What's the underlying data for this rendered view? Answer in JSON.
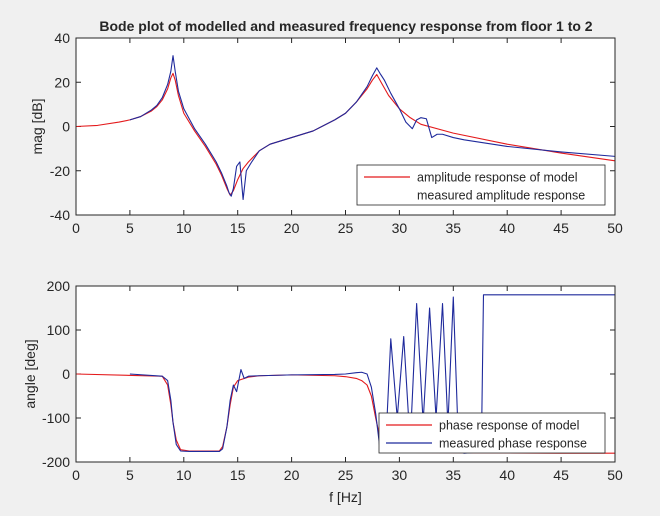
{
  "chart_data": [
    {
      "type": "line",
      "title": "Bode plot of modelled and measured frequency response from floor 1 to 2",
      "xlabel": "",
      "ylabel": "mag [dB]",
      "xlim": [
        0,
        50
      ],
      "ylim": [
        -40,
        40
      ],
      "xticks": [
        0,
        5,
        10,
        15,
        20,
        25,
        30,
        35,
        40,
        45,
        50
      ],
      "yticks": [
        -40,
        -20,
        0,
        20,
        40
      ],
      "grid": false,
      "legend_position": "bottom-right",
      "series": [
        {
          "name": "amplitude response of model",
          "color": "#e41a1c",
          "x": [
            0,
            2,
            4,
            5,
            6,
            7,
            7.5,
            8,
            8.5,
            8.8,
            9,
            9.2,
            9.5,
            10,
            11,
            12,
            13,
            13.5,
            14,
            14.3,
            14.6,
            15,
            15.5,
            16,
            17,
            18,
            20,
            22,
            24,
            25,
            26,
            27,
            27.5,
            27.9,
            28.3,
            29,
            30,
            31,
            32,
            35,
            40,
            45,
            50
          ],
          "y": [
            0,
            0.5,
            2,
            3,
            4.5,
            7,
            9,
            12,
            17,
            22,
            24,
            21,
            14,
            6,
            -2,
            -9,
            -17,
            -22,
            -28,
            -31,
            -29,
            -24,
            -19,
            -16,
            -11,
            -8,
            -5,
            -2,
            3,
            6,
            11,
            17,
            21,
            23.5,
            20,
            14,
            8,
            4,
            1,
            -3,
            -8,
            -12,
            -15.5
          ]
        },
        {
          "name": "measured amplitude response",
          "color": "#1f2a9c",
          "x": [
            5,
            6,
            7,
            7.5,
            8,
            8.5,
            8.8,
            9,
            9.2,
            9.5,
            10,
            11,
            12,
            13,
            13.5,
            14,
            14.2,
            14.4,
            14.6,
            14.9,
            15.2,
            15.5,
            15.8,
            16.3,
            17,
            18,
            20,
            22,
            24,
            25,
            26,
            27,
            27.5,
            27.9,
            28.2,
            28.6,
            29.2,
            30,
            30.6,
            31.2,
            31.6,
            32,
            32.5,
            33,
            33.5,
            34,
            35,
            36,
            40,
            45,
            50
          ],
          "y": [
            3,
            4.5,
            7.5,
            9.5,
            13,
            19,
            25,
            32,
            25,
            16,
            8,
            -1,
            -8,
            -16,
            -21,
            -27,
            -30,
            -31.5,
            -28,
            -18,
            -16,
            -33,
            -20,
            -16,
            -11,
            -8,
            -5,
            -2,
            3,
            6,
            11,
            18,
            23,
            26.5,
            24,
            21,
            15,
            8,
            2,
            -1,
            3,
            4,
            3.5,
            -5,
            -3.5,
            -3.5,
            -5,
            -6,
            -9,
            -11.5,
            -13.5
          ]
        }
      ]
    },
    {
      "type": "line",
      "title": "",
      "xlabel": "f [Hz]",
      "ylabel": "angle [deg]",
      "xlim": [
        0,
        50
      ],
      "ylim": [
        -200,
        200
      ],
      "xticks": [
        0,
        5,
        10,
        15,
        20,
        25,
        30,
        35,
        40,
        45,
        50
      ],
      "yticks": [
        -200,
        -100,
        0,
        100,
        200
      ],
      "grid": false,
      "legend_position": "bottom-right",
      "series": [
        {
          "name": "phase response of model",
          "color": "#e41a1c",
          "x": [
            0,
            8,
            8.5,
            8.8,
            9,
            9.3,
            9.7,
            10.5,
            13.3,
            13.6,
            14,
            14.3,
            14.6,
            15,
            16,
            17,
            20,
            24,
            25,
            26,
            26.5,
            27,
            27.4,
            27.8,
            28.2,
            28.7,
            29.5,
            35,
            45,
            50
          ],
          "y": [
            0,
            -5,
            -25,
            -70,
            -110,
            -150,
            -172,
            -175,
            -175,
            -165,
            -120,
            -70,
            -30,
            -15,
            -7,
            -4,
            -2,
            -4,
            -6,
            -10,
            -15,
            -25,
            -50,
            -100,
            -145,
            -170,
            -178,
            -179,
            -180,
            -180
          ]
        },
        {
          "name": "measured phase response",
          "color": "#1f2a9c",
          "x": [
            5,
            8,
            8.5,
            8.8,
            9,
            9.3,
            9.7,
            10.5,
            12,
            13.3,
            13.6,
            14,
            14.3,
            14.6,
            14.9,
            15.3,
            15.6,
            16,
            17,
            20,
            24,
            25,
            26,
            26.5,
            27,
            27.4,
            27.8,
            28.2,
            28.7,
            29.2,
            29.8,
            30.4,
            31,
            31.6,
            32.2,
            32.8,
            33.4,
            34,
            34.5,
            35,
            35.5,
            36,
            37,
            37.6,
            37.8,
            40,
            45,
            50
          ],
          "y": [
            0,
            -5,
            -15,
            -60,
            -110,
            -160,
            -175,
            -176,
            -176,
            -176,
            -170,
            -120,
            -60,
            -25,
            -40,
            10,
            -10,
            -5,
            -4,
            -2,
            -1,
            0,
            3,
            4,
            0,
            -30,
            -90,
            -170,
            -178,
            80,
            -100,
            85,
            -160,
            160,
            -110,
            150,
            -100,
            160,
            -115,
            175,
            -175,
            -180,
            -178,
            -178,
            180,
            180,
            180,
            180
          ]
        }
      ]
    }
  ]
}
